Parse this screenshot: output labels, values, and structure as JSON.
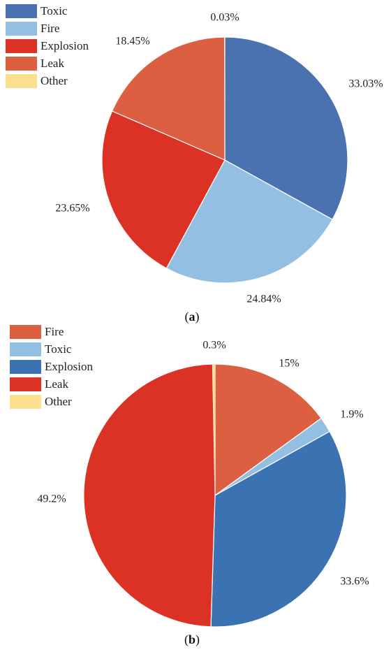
{
  "chart_data": [
    {
      "type": "pie",
      "caption": "a",
      "legend_position": "top-left",
      "slices": [
        {
          "label": "Toxic",
          "value": 33.03,
          "display": "33.03%",
          "color": "#4A72B0"
        },
        {
          "label": "Fire",
          "value": 24.84,
          "display": "24.84%",
          "color": "#92BFE2"
        },
        {
          "label": "Explosion",
          "value": 23.65,
          "display": "23.65%",
          "color": "#DC3125"
        },
        {
          "label": "Leak",
          "value": 18.45,
          "display": "18.45%",
          "color": "#DC5F41"
        },
        {
          "label": "Other",
          "value": 0.03,
          "display": "0.03%",
          "color": "#FDE08E"
        }
      ]
    },
    {
      "type": "pie",
      "caption": "b",
      "legend_position": "top-left",
      "slices": [
        {
          "label": "Fire",
          "value": 15,
          "display": "15%",
          "color": "#DC5F41"
        },
        {
          "label": "Toxic",
          "value": 1.9,
          "display": "1.9%",
          "color": "#92BFE2"
        },
        {
          "label": "Explosion",
          "value": 33.6,
          "display": "33.6%",
          "color": "#3A72B2"
        },
        {
          "label": "Leak",
          "value": 49.2,
          "display": "49.2%",
          "color": "#DC3125"
        },
        {
          "label": "Other",
          "value": 0.3,
          "display": "0.3%",
          "color": "#FDE08E"
        }
      ]
    }
  ]
}
